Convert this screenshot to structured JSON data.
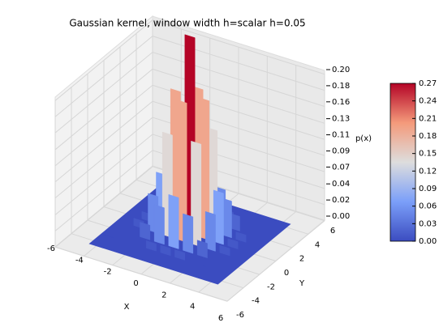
{
  "chart_data": {
    "type": "surface3d",
    "title": "Gaussian kernel, window width h=scalar h=0.05",
    "xlabel": "X",
    "ylabel": "Y",
    "zlabel": "p(x)",
    "x": [
      -4,
      -3,
      -2,
      -1,
      0,
      1,
      2,
      3,
      4
    ],
    "y": [
      -4,
      -3,
      -2,
      -1,
      0,
      1,
      2,
      3,
      4
    ],
    "z": [
      [
        0,
        0,
        0,
        0,
        0,
        0,
        0,
        0,
        0
      ],
      [
        0,
        0,
        0,
        0.01,
        0.01,
        0.01,
        0,
        0,
        0
      ],
      [
        0,
        0,
        0.02,
        0.05,
        0.07,
        0.05,
        0.02,
        0,
        0
      ],
      [
        0,
        0.01,
        0.05,
        0.14,
        0.19,
        0.14,
        0.05,
        0.01,
        0
      ],
      [
        0,
        0.01,
        0.07,
        0.19,
        0.27,
        0.19,
        0.07,
        0.01,
        0
      ],
      [
        0,
        0.01,
        0.05,
        0.14,
        0.19,
        0.14,
        0.05,
        0.01,
        0
      ],
      [
        0,
        0,
        0.02,
        0.05,
        0.07,
        0.05,
        0.02,
        0,
        0
      ],
      [
        0,
        0,
        0,
        0.01,
        0.01,
        0.01,
        0,
        0,
        0
      ],
      [
        0,
        0,
        0,
        0,
        0,
        0,
        0,
        0,
        0
      ]
    ],
    "xlim": [
      -6,
      6
    ],
    "xticks": [
      -6,
      -4,
      -2,
      0,
      2,
      4,
      6
    ],
    "ylim": [
      -6,
      6
    ],
    "yticks": [
      -6,
      -4,
      -2,
      0,
      2,
      4,
      6
    ],
    "zlim": [
      0,
      0.2
    ],
    "zticks": [
      {
        "value": 0,
        "label": "0.00"
      },
      {
        "value": 0.022,
        "label": "0.02"
      },
      {
        "value": 0.044,
        "label": "0.04"
      },
      {
        "value": 0.067,
        "label": "0.07"
      },
      {
        "value": 0.089,
        "label": "0.09"
      },
      {
        "value": 0.111,
        "label": "0.11"
      },
      {
        "value": 0.133,
        "label": "0.13"
      },
      {
        "value": 0.156,
        "label": "0.16"
      },
      {
        "value": 0.178,
        "label": "0.18"
      },
      {
        "value": 0.2,
        "label": "0.20"
      }
    ],
    "colormap": [
      "#3b4cc0",
      "#7b9ff9",
      "#dddddd",
      "#f49a7b",
      "#b40426"
    ],
    "clim": [
      0,
      0.27
    ],
    "cticks": [
      {
        "value": 0,
        "label": "0.00"
      },
      {
        "value": 0.03,
        "label": "0.03"
      },
      {
        "value": 0.06,
        "label": "0.06"
      },
      {
        "value": 0.09,
        "label": "0.09"
      },
      {
        "value": 0.12,
        "label": "0.12"
      },
      {
        "value": 0.15,
        "label": "0.15"
      },
      {
        "value": 0.18,
        "label": "0.18"
      },
      {
        "value": 0.21,
        "label": "0.21"
      },
      {
        "value": 0.24,
        "label": "0.24"
      },
      {
        "value": 0.27,
        "label": "0.27"
      }
    ],
    "grid": true
  }
}
